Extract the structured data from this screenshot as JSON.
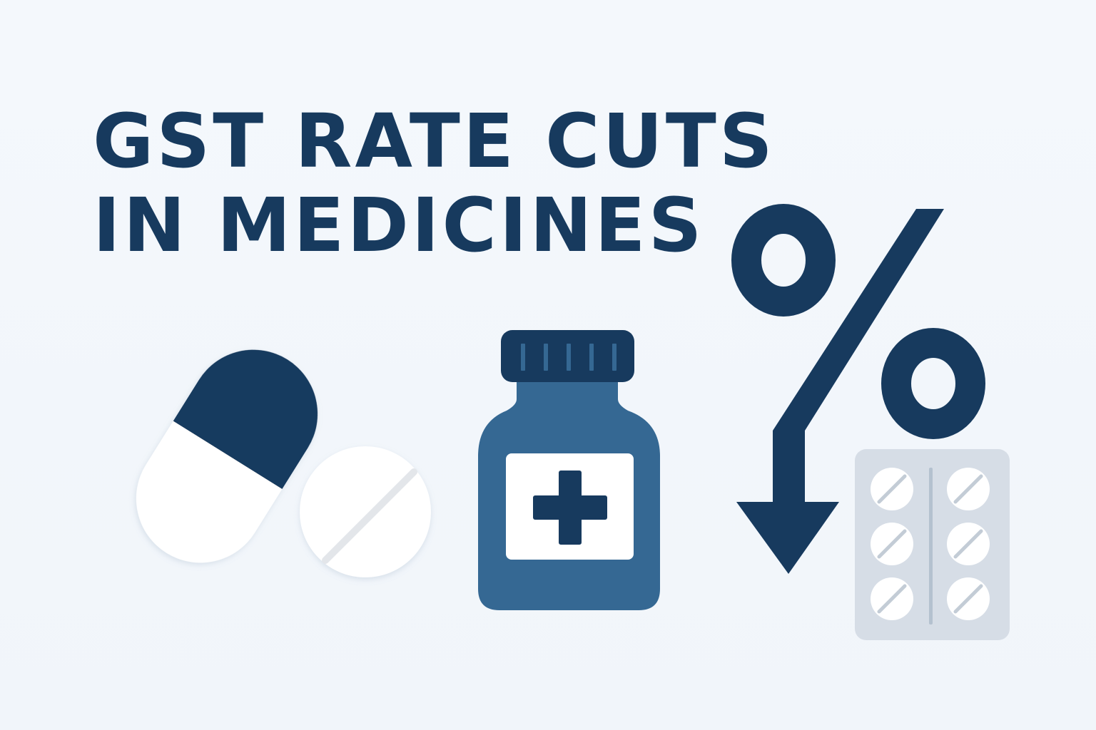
{
  "headline": {
    "line1": "GST RATE CUTS",
    "line2": "IN MEDICINES"
  },
  "icons": {
    "capsule": "capsule-icon",
    "tablet": "tablet-icon",
    "bottle": "medicine-bottle-icon",
    "cross": "medical-cross-icon",
    "percent": "percent-icon",
    "arrow": "down-arrow-icon",
    "blister": "blister-pack-icon"
  },
  "colors": {
    "navy": "#173a5e",
    "bottle_blue": "#356893",
    "background": "#f3f7fb",
    "blister_grey": "#d6dde6"
  }
}
